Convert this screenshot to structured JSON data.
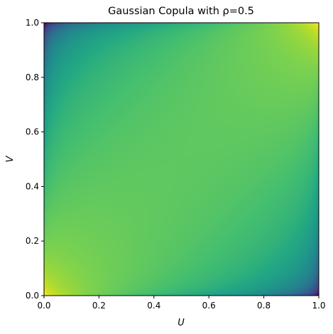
{
  "chart_data": {
    "type": "heatmap",
    "title": "Gaussian Copula with ρ=0.5",
    "xlabel": "U",
    "ylabel": "V",
    "xlim": [
      0,
      1
    ],
    "ylim": [
      0,
      1
    ],
    "xticks": [
      0.0,
      0.2,
      0.4,
      0.6,
      0.8,
      1.0
    ],
    "yticks": [
      0.0,
      0.2,
      0.4,
      0.6,
      0.8,
      1.0
    ],
    "xtick_labels": [
      "0.0",
      "0.2",
      "0.4",
      "0.6",
      "0.8",
      "1.0"
    ],
    "ytick_labels": [
      "0.0",
      "0.2",
      "0.4",
      "0.6",
      "0.8",
      "1.0"
    ],
    "rho": 0.5,
    "colormap": "viridis",
    "grid": false,
    "legend": "none"
  }
}
